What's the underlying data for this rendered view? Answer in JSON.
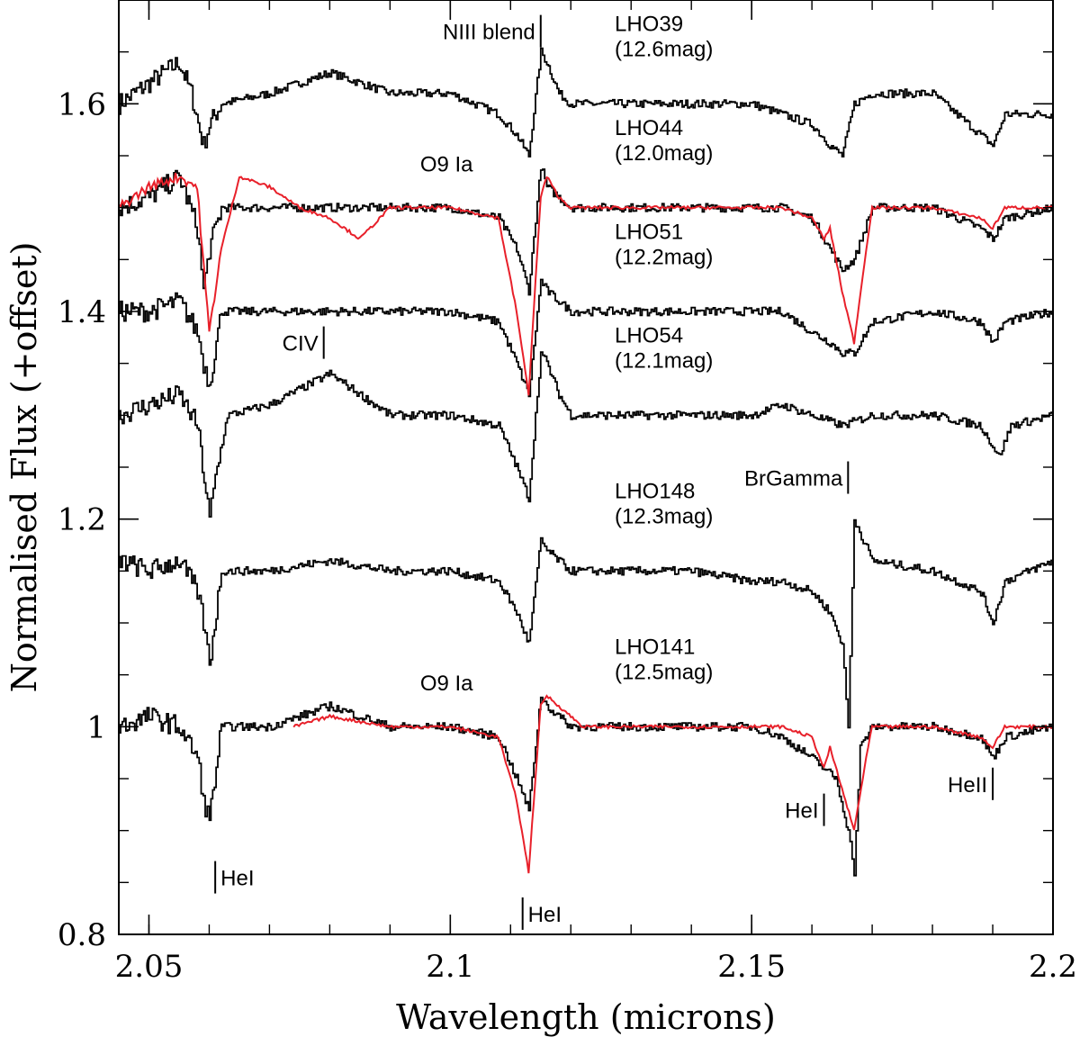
{
  "chart_data": {
    "type": "line",
    "title": "",
    "xlabel": "Wavelength (microns)",
    "ylabel": "Normalised Flux (+offset)",
    "xlim": [
      2.045,
      2.2
    ],
    "ylim": [
      0.8,
      1.7
    ],
    "x_ticks": [
      {
        "value": 2.05,
        "label": "2.05"
      },
      {
        "value": 2.1,
        "label": "2.1"
      },
      {
        "value": 2.15,
        "label": "2.15"
      },
      {
        "value": 2.2,
        "label": "2.2"
      }
    ],
    "y_ticks": [
      {
        "value": 0.8,
        "label": "0.8"
      },
      {
        "value": 1.0,
        "label": "1"
      },
      {
        "value": 1.2,
        "label": "1.2"
      },
      {
        "value": 1.4,
        "label": "1.4"
      },
      {
        "value": 1.6,
        "label": "1.6"
      }
    ],
    "series": [
      {
        "name": "LHO39",
        "mag": "(12.6mag)",
        "color": "#000000",
        "offset": 1.6,
        "x": [
          2.045,
          2.05,
          2.055,
          2.057,
          2.059,
          2.06,
          2.062,
          2.07,
          2.08,
          2.09,
          2.1,
          2.108,
          2.111,
          2.113,
          2.115,
          2.116,
          2.118,
          2.12,
          2.13,
          2.14,
          2.15,
          2.16,
          2.163,
          2.165,
          2.167,
          2.17,
          2.18,
          2.188,
          2.19,
          2.192,
          2.2
        ],
        "y": [
          1.6,
          1.62,
          1.64,
          1.61,
          1.56,
          1.58,
          1.6,
          1.61,
          1.63,
          1.61,
          1.61,
          1.59,
          1.57,
          1.55,
          1.65,
          1.64,
          1.61,
          1.6,
          1.6,
          1.6,
          1.6,
          1.58,
          1.56,
          1.55,
          1.6,
          1.61,
          1.61,
          1.57,
          1.56,
          1.59,
          1.59
        ]
      },
      {
        "name": "LHO44",
        "mag": "(12.0mag)",
        "color": "#000000",
        "offset": 1.5,
        "x": [
          2.045,
          2.05,
          2.055,
          2.058,
          2.059,
          2.06,
          2.062,
          2.07,
          2.08,
          2.09,
          2.1,
          2.108,
          2.111,
          2.113,
          2.115,
          2.116,
          2.118,
          2.12,
          2.13,
          2.14,
          2.15,
          2.155,
          2.16,
          2.163,
          2.165,
          2.167,
          2.17,
          2.18,
          2.188,
          2.19,
          2.192,
          2.2
        ],
        "y": [
          1.5,
          1.51,
          1.53,
          1.48,
          1.42,
          1.46,
          1.5,
          1.5,
          1.5,
          1.5,
          1.5,
          1.49,
          1.46,
          1.42,
          1.54,
          1.52,
          1.51,
          1.5,
          1.5,
          1.5,
          1.5,
          1.5,
          1.49,
          1.46,
          1.44,
          1.45,
          1.5,
          1.5,
          1.48,
          1.47,
          1.49,
          1.5
        ]
      },
      {
        "name": "LHO51",
        "mag": "(12.2mag)",
        "color": "#000000",
        "offset": 1.4,
        "x": [
          2.045,
          2.05,
          2.055,
          2.058,
          2.059,
          2.06,
          2.062,
          2.07,
          2.08,
          2.09,
          2.1,
          2.108,
          2.111,
          2.113,
          2.115,
          2.116,
          2.118,
          2.12,
          2.13,
          2.14,
          2.15,
          2.155,
          2.16,
          2.163,
          2.165,
          2.167,
          2.17,
          2.18,
          2.188,
          2.19,
          2.192,
          2.2
        ],
        "y": [
          1.4,
          1.4,
          1.41,
          1.38,
          1.35,
          1.33,
          1.4,
          1.4,
          1.4,
          1.4,
          1.4,
          1.39,
          1.35,
          1.32,
          1.43,
          1.42,
          1.41,
          1.4,
          1.4,
          1.4,
          1.4,
          1.4,
          1.38,
          1.37,
          1.36,
          1.36,
          1.39,
          1.4,
          1.39,
          1.37,
          1.39,
          1.4
        ]
      },
      {
        "name": "LHO54",
        "mag": "(12.1mag)",
        "color": "#000000",
        "offset": 1.3,
        "x": [
          2.045,
          2.05,
          2.055,
          2.058,
          2.06,
          2.061,
          2.063,
          2.07,
          2.08,
          2.09,
          2.1,
          2.108,
          2.111,
          2.113,
          2.115,
          2.116,
          2.118,
          2.12,
          2.13,
          2.14,
          2.15,
          2.155,
          2.16,
          2.165,
          2.17,
          2.18,
          2.188,
          2.19,
          2.191,
          2.193,
          2.2
        ],
        "y": [
          1.3,
          1.31,
          1.32,
          1.29,
          1.2,
          1.24,
          1.3,
          1.31,
          1.34,
          1.3,
          1.3,
          1.29,
          1.25,
          1.22,
          1.36,
          1.35,
          1.32,
          1.3,
          1.3,
          1.3,
          1.3,
          1.31,
          1.3,
          1.29,
          1.3,
          1.3,
          1.29,
          1.27,
          1.26,
          1.29,
          1.3
        ]
      },
      {
        "name": "LHO148",
        "mag": "(12.3mag)",
        "color": "#000000",
        "offset": 1.15,
        "x": [
          2.045,
          2.05,
          2.055,
          2.058,
          2.059,
          2.06,
          2.062,
          2.07,
          2.08,
          2.09,
          2.1,
          2.108,
          2.111,
          2.113,
          2.115,
          2.116,
          2.118,
          2.12,
          2.13,
          2.14,
          2.15,
          2.155,
          2.16,
          2.163,
          2.165,
          2.166,
          2.167,
          2.17,
          2.18,
          2.188,
          2.19,
          2.192,
          2.2
        ],
        "y": [
          1.16,
          1.15,
          1.16,
          1.13,
          1.1,
          1.06,
          1.15,
          1.15,
          1.16,
          1.15,
          1.15,
          1.14,
          1.11,
          1.08,
          1.18,
          1.17,
          1.16,
          1.15,
          1.15,
          1.15,
          1.14,
          1.14,
          1.13,
          1.11,
          1.08,
          1.0,
          1.2,
          1.16,
          1.15,
          1.13,
          1.1,
          1.14,
          1.16
        ]
      },
      {
        "name": "LHO141",
        "mag": "(12.5mag)",
        "color": "#000000",
        "offset": 1.0,
        "x": [
          2.045,
          2.05,
          2.055,
          2.058,
          2.059,
          2.06,
          2.062,
          2.07,
          2.08,
          2.09,
          2.1,
          2.108,
          2.111,
          2.113,
          2.115,
          2.116,
          2.118,
          2.12,
          2.13,
          2.14,
          2.15,
          2.155,
          2.16,
          2.162,
          2.164,
          2.166,
          2.167,
          2.168,
          2.17,
          2.18,
          2.188,
          2.19,
          2.192,
          2.2
        ],
        "y": [
          1.0,
          1.01,
          1.0,
          0.97,
          0.93,
          0.91,
          1.0,
          1.0,
          1.02,
          1.0,
          1.0,
          0.99,
          0.95,
          0.92,
          1.03,
          1.02,
          1.01,
          1.0,
          1.0,
          1.0,
          1.0,
          0.99,
          0.97,
          0.96,
          0.95,
          0.9,
          0.86,
          0.98,
          1.0,
          1.0,
          0.99,
          0.97,
          0.99,
          1.0
        ]
      },
      {
        "name": "O9 Ia",
        "color": "#e8202a",
        "offset": 1.5,
        "x": [
          2.045,
          2.05,
          2.055,
          2.058,
          2.06,
          2.062,
          2.065,
          2.07,
          2.075,
          2.08,
          2.085,
          2.09,
          2.1,
          2.108,
          2.111,
          2.113,
          2.115,
          2.116,
          2.118,
          2.12,
          2.13,
          2.14,
          2.15,
          2.155,
          2.16,
          2.162,
          2.163,
          2.165,
          2.167,
          2.169,
          2.17,
          2.18,
          2.188,
          2.19,
          2.192,
          2.2
        ],
        "y": [
          1.5,
          1.52,
          1.53,
          1.52,
          1.38,
          1.46,
          1.53,
          1.52,
          1.5,
          1.49,
          1.47,
          1.5,
          1.5,
          1.49,
          1.4,
          1.32,
          1.51,
          1.53,
          1.51,
          1.5,
          1.5,
          1.5,
          1.5,
          1.5,
          1.49,
          1.47,
          1.48,
          1.42,
          1.37,
          1.46,
          1.5,
          1.5,
          1.49,
          1.48,
          1.5,
          1.5
        ]
      },
      {
        "name": "O9 Ia",
        "color": "#e8202a",
        "offset": 1.0,
        "x": [
          2.074,
          2.08,
          2.09,
          2.1,
          2.108,
          2.111,
          2.113,
          2.115,
          2.116,
          2.118,
          2.12,
          2.122,
          2.155,
          2.16,
          2.162,
          2.163,
          2.165,
          2.167,
          2.169,
          2.17,
          2.18,
          2.188,
          2.19,
          2.192,
          2.2
        ],
        "y": [
          1.0,
          1.01,
          1.0,
          1.0,
          0.99,
          0.93,
          0.86,
          1.02,
          1.03,
          1.02,
          1.01,
          1.0,
          1.0,
          0.99,
          0.96,
          0.98,
          0.94,
          0.9,
          0.97,
          1.0,
          1.0,
          0.99,
          0.98,
          1.0,
          1.0
        ]
      }
    ],
    "annotations": [
      {
        "text": "NIII blend",
        "x": 2.115,
        "y": 1.67
      },
      {
        "text": "CIV",
        "x": 2.079,
        "y": 1.37
      },
      {
        "text": "BrGamma",
        "x": 2.166,
        "y": 1.24
      },
      {
        "text": "HeI",
        "x": 2.061,
        "y": 0.855
      },
      {
        "text": "HeI",
        "x": 2.112,
        "y": 0.82
      },
      {
        "text": "HeI",
        "x": 2.162,
        "y": 0.92
      },
      {
        "text": "HeII",
        "x": 2.19,
        "y": 0.945
      },
      {
        "text": "O9 Ia",
        "x": 2.095,
        "y": 1.535
      },
      {
        "text": "O9 Ia",
        "x": 2.095,
        "y": 1.035
      }
    ]
  }
}
